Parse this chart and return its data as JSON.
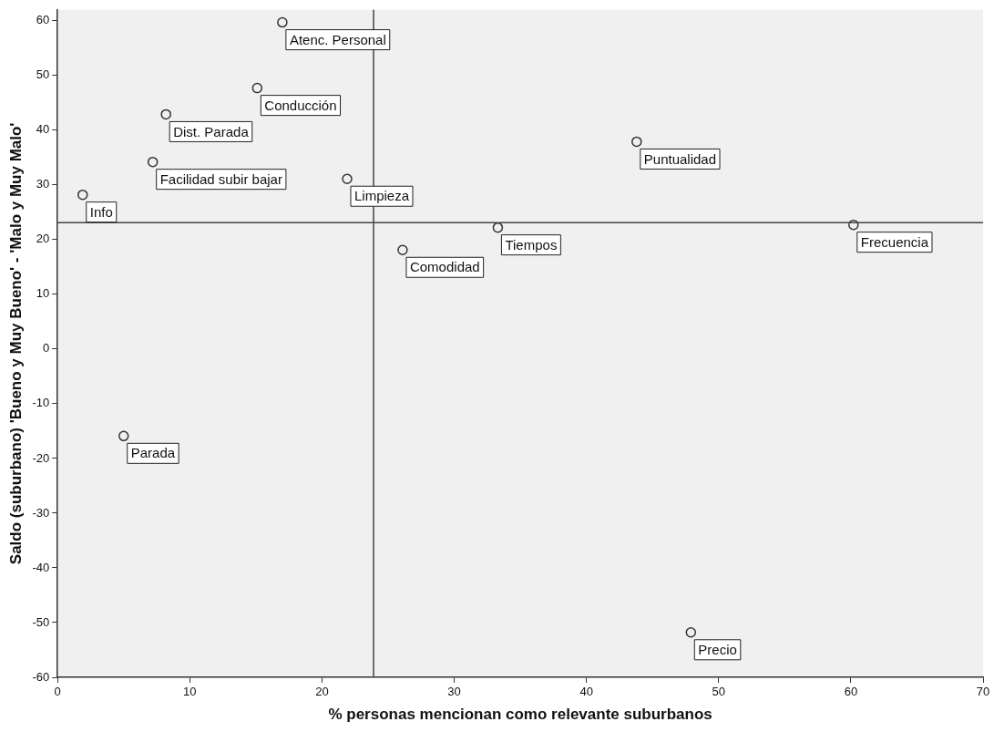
{
  "chart_data": {
    "type": "scatter",
    "xlabel": "% personas mencionan como relevante suburbanos",
    "ylabel": "Saldo (suburbano) 'Bueno y Muy Bueno' - 'Malo y Muy Malo'",
    "x": [
      17,
      15.1,
      8.2,
      1.9,
      7.2,
      21.9,
      43.8,
      33.3,
      26.1,
      60.2,
      5,
      47.9
    ],
    "values": [
      59.7,
      47.7,
      42.9,
      28.2,
      34.2,
      31.1,
      37.9,
      22.2,
      18.1,
      22.7,
      -15.9,
      -51.8
    ],
    "color": "#333333",
    "marker": "circle",
    "grid": false,
    "legend": false,
    "xlim": [
      0,
      70
    ],
    "xticks": [
      0,
      10,
      20,
      30,
      40,
      50,
      60,
      70
    ],
    "ylim": [
      -60,
      62
    ],
    "yticks": [
      -60,
      -50,
      -40,
      -30,
      -20,
      -10,
      0,
      10,
      20,
      30,
      40,
      50,
      60
    ],
    "ref_lines": [
      {
        "axis": "x",
        "value": 23.9,
        "color": "#444444"
      },
      {
        "axis": "y",
        "value": 23.1,
        "color": "#444444"
      }
    ],
    "annotations": [
      {
        "text": "Atenc. Personal",
        "x": 17,
        "y": 59.7
      },
      {
        "text": "Conducción",
        "x": 15.1,
        "y": 47.7
      },
      {
        "text": "Dist. Parada",
        "x": 8.2,
        "y": 42.9
      },
      {
        "text": "Info",
        "x": 1.9,
        "y": 28.2
      },
      {
        "text": "Facilidad subir bajar",
        "x": 7.2,
        "y": 34.2
      },
      {
        "text": "Limpieza",
        "x": 21.9,
        "y": 31.1
      },
      {
        "text": "Puntualidad",
        "x": 43.8,
        "y": 37.9
      },
      {
        "text": "Tiempos",
        "x": 33.3,
        "y": 22.2
      },
      {
        "text": "Comodidad",
        "x": 26.1,
        "y": 18.1
      },
      {
        "text": "Frecuencia",
        "x": 60.2,
        "y": 22.7
      },
      {
        "text": "Parada",
        "x": 5,
        "y": -15.9
      },
      {
        "text": "Precio",
        "x": 47.9,
        "y": -51.8
      }
    ]
  }
}
